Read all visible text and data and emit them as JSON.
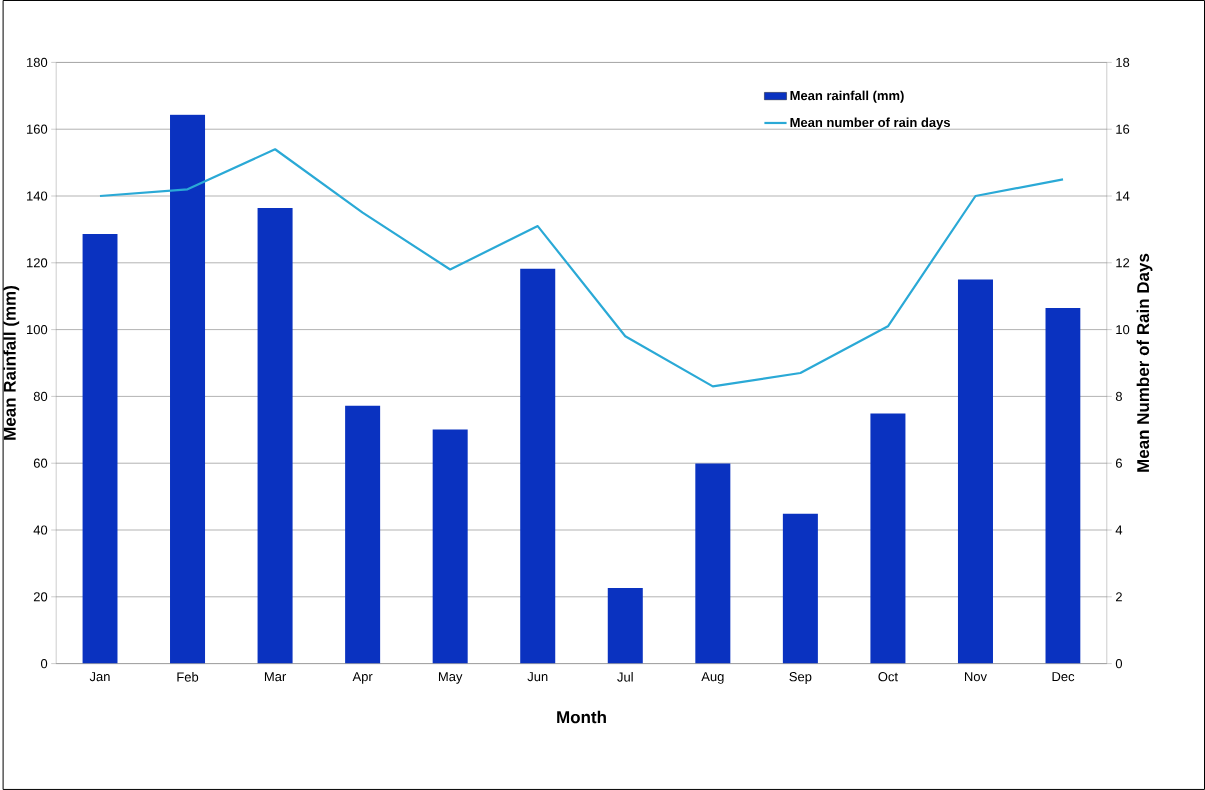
{
  "chart_data": {
    "type": "bar",
    "categories": [
      "Jan",
      "Feb",
      "Mar",
      "Apr",
      "May",
      "Jun",
      "Jul",
      "Aug",
      "Sep",
      "Oct",
      "Nov",
      "Dec"
    ],
    "series": [
      {
        "name": "Mean rainfall (mm)",
        "color": "#0a32c0",
        "values": [
          128.6,
          164.3,
          136.4,
          77.2,
          70.1,
          118.2,
          22.6,
          59.9,
          44.9,
          74.9,
          115,
          106.5
        ]
      },
      {
        "name": "Mean number of rain days",
        "type": "line",
        "axis": "y2",
        "color": "#2aa9d6",
        "values": [
          14.0,
          14.2,
          15.4,
          13.5,
          11.8,
          13.1,
          9.8,
          8.3,
          8.7,
          10.1,
          14.0,
          14.5
        ]
      }
    ],
    "xlabel": "Month",
    "ylabel": "Mean Rainfall (mm)",
    "y2label": "Mean Number of Rain Days",
    "ylim": [
      0,
      180
    ],
    "yticks": [
      0,
      20,
      40,
      60,
      80,
      100,
      120,
      140,
      160,
      180
    ],
    "y2lim": [
      0,
      18
    ],
    "y2ticks": [
      0,
      2,
      4,
      6,
      8,
      10,
      12,
      14,
      16,
      18
    ],
    "grid": "y",
    "legend": "top right"
  }
}
